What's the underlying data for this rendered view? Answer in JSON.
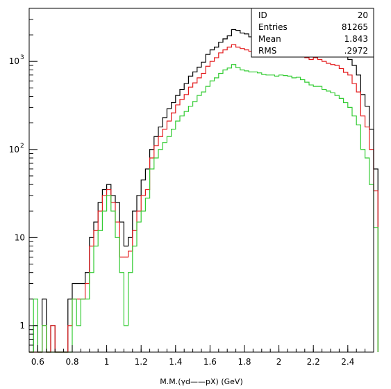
{
  "chart_data": {
    "type": "histogram",
    "xlabel": "M.M.(γd——pX) (GeV)",
    "ylabel": "",
    "xlim": [
      0.55,
      2.55
    ],
    "ylim": [
      0.5,
      4000
    ],
    "yscale": "log",
    "grid": false,
    "bin_width": 0.025,
    "x_ticks": [
      "0.6",
      "0.8",
      "1",
      "1.2",
      "1.4",
      "1.6",
      "1.8",
      "2",
      "2.2",
      "2.4"
    ],
    "y_ticks": [
      {
        "value": 1,
        "base": "1",
        "exp": ""
      },
      {
        "value": 10,
        "base": "10",
        "exp": ""
      },
      {
        "value": 100,
        "base": "10",
        "exp": "2"
      },
      {
        "value": 1000,
        "base": "10",
        "exp": "3"
      }
    ],
    "stats_box": [
      {
        "label": "ID",
        "value": "20"
      },
      {
        "label": "Entries",
        "value": "81265"
      },
      {
        "label": "Mean",
        "value": "1.843"
      },
      {
        "label": "RMS",
        "value": ".2972"
      }
    ],
    "series": [
      {
        "color": "#000000",
        "x_start": 0.55,
        "values": [
          0,
          1,
          0,
          2,
          0,
          1,
          0,
          0,
          0,
          2,
          3,
          3,
          3,
          4,
          10,
          15,
          25,
          35,
          40,
          30,
          25,
          15,
          8,
          10,
          20,
          30,
          45,
          60,
          100,
          140,
          180,
          230,
          290,
          340,
          410,
          480,
          560,
          680,
          760,
          860,
          980,
          1200,
          1350,
          1450,
          1650,
          1800,
          1950,
          2300,
          2250,
          2100,
          2050,
          1900,
          1850,
          1800,
          1780,
          1760,
          1720,
          1700,
          1700,
          1680,
          1720,
          1700,
          1650,
          1600,
          1500,
          1480,
          1550,
          1550,
          1480,
          1400,
          1350,
          1350,
          1250,
          1150,
          1050,
          900,
          700,
          420,
          310,
          170,
          60
        ]
      },
      {
        "color": "#e41a1c",
        "x_start": 0.55,
        "values": [
          0,
          0,
          0,
          1,
          0,
          1,
          0,
          0,
          0,
          1,
          2,
          2,
          2,
          3,
          8,
          12,
          20,
          30,
          35,
          25,
          15,
          6,
          6,
          7,
          12,
          20,
          30,
          35,
          80,
          110,
          140,
          170,
          210,
          260,
          320,
          370,
          420,
          510,
          570,
          650,
          730,
          880,
          1000,
          1100,
          1250,
          1350,
          1450,
          1550,
          1450,
          1400,
          1350,
          1300,
          1300,
          1270,
          1280,
          1270,
          1300,
          1250,
          1270,
          1250,
          1280,
          1250,
          1200,
          1180,
          1100,
          1050,
          1100,
          1050,
          1000,
          950,
          920,
          900,
          830,
          750,
          700,
          560,
          450,
          240,
          180,
          100,
          34
        ]
      },
      {
        "color": "#33cc33",
        "x_start": 0.55,
        "values": [
          0,
          2,
          0,
          1,
          0,
          0,
          0,
          0,
          0,
          0,
          2,
          1,
          2,
          2,
          4,
          8,
          12,
          20,
          30,
          20,
          10,
          4,
          1,
          4,
          8,
          15,
          20,
          28,
          60,
          80,
          100,
          120,
          140,
          170,
          210,
          240,
          270,
          310,
          350,
          410,
          450,
          520,
          600,
          650,
          730,
          800,
          840,
          920,
          850,
          800,
          780,
          760,
          760,
          740,
          710,
          700,
          700,
          680,
          700,
          690,
          680,
          650,
          660,
          620,
          580,
          540,
          520,
          520,
          480,
          460,
          440,
          410,
          380,
          340,
          300,
          240,
          190,
          100,
          80,
          40,
          13
        ]
      }
    ]
  }
}
